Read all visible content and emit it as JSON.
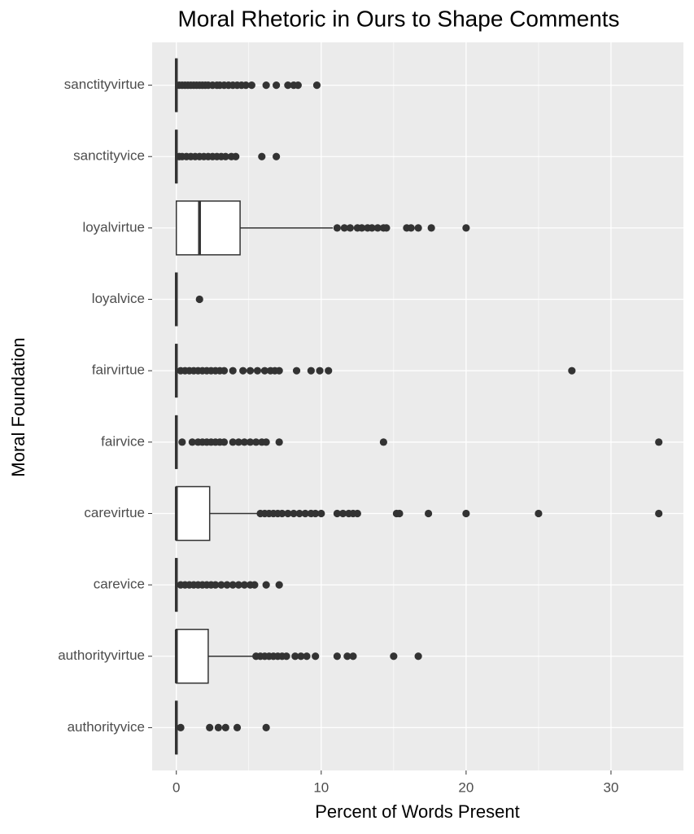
{
  "chart_data": {
    "type": "boxplot",
    "title": "Moral Rhetoric in Ours to Shape Comments",
    "xlabel": "Percent of Words Present",
    "ylabel": "Moral Foundation",
    "categories": [
      "sanctityvirtue",
      "sanctityvice",
      "loyalvirtue",
      "loyalvice",
      "fairvirtue",
      "fairvice",
      "carevirtue",
      "carevice",
      "authorityvirtue",
      "authorityvice"
    ],
    "boxes": [
      {
        "min": 0,
        "q1": 0,
        "median": 0,
        "q3": 0,
        "max": 0,
        "outliers": [
          0.2,
          0.4,
          0.6,
          0.8,
          1.0,
          1.2,
          1.4,
          1.6,
          1.8,
          2.0,
          2.2,
          2.5,
          2.8,
          3.0,
          3.3,
          3.6,
          3.9,
          4.2,
          4.5,
          4.8,
          5.2,
          6.2,
          6.9,
          7.7,
          8.1,
          8.4,
          9.7
        ]
      },
      {
        "min": 0,
        "q1": 0,
        "median": 0,
        "q3": 0,
        "max": 0,
        "outliers": [
          0.2,
          0.4,
          0.7,
          1.0,
          1.3,
          1.6,
          1.9,
          2.2,
          2.5,
          2.8,
          3.1,
          3.4,
          3.8,
          4.1,
          5.9,
          6.9
        ]
      },
      {
        "min": 0,
        "q1": 0,
        "median": 1.6,
        "q3": 4.4,
        "max": 10.8,
        "outliers": [
          11.1,
          11.6,
          12.0,
          12.5,
          12.8,
          13.2,
          13.5,
          13.9,
          14.3,
          14.5,
          15.9,
          16.2,
          16.7,
          17.6,
          20.0
        ]
      },
      {
        "min": 0,
        "q1": 0,
        "median": 0,
        "q3": 0,
        "max": 0,
        "outliers": [
          1.6
        ]
      },
      {
        "min": 0,
        "q1": 0,
        "median": 0,
        "q3": 0,
        "max": 0,
        "outliers": [
          0.3,
          0.6,
          0.9,
          1.2,
          1.5,
          1.8,
          2.1,
          2.4,
          2.7,
          3.0,
          3.3,
          3.9,
          4.6,
          5.1,
          5.6,
          6.1,
          6.5,
          6.8,
          7.1,
          8.3,
          9.3,
          9.9,
          10.5,
          27.3
        ]
      },
      {
        "min": 0,
        "q1": 0,
        "median": 0,
        "q3": 0,
        "max": 0,
        "outliers": [
          0.4,
          1.1,
          1.5,
          1.8,
          2.1,
          2.4,
          2.7,
          3.0,
          3.3,
          3.9,
          4.3,
          4.7,
          5.1,
          5.5,
          5.9,
          6.2,
          7.1,
          14.3,
          33.3
        ]
      },
      {
        "min": 0,
        "q1": 0,
        "median": 0,
        "q3": 2.3,
        "max": 5.6,
        "outliers": [
          5.8,
          6.1,
          6.4,
          6.7,
          7.0,
          7.3,
          7.7,
          8.1,
          8.5,
          8.9,
          9.3,
          9.6,
          10.0,
          11.1,
          11.5,
          11.9,
          12.2,
          12.5,
          15.2,
          15.4,
          17.4,
          20.0,
          25.0,
          33.3
        ]
      },
      {
        "min": 0,
        "q1": 0,
        "median": 0,
        "q3": 0,
        "max": 0,
        "outliers": [
          0.3,
          0.6,
          0.9,
          1.2,
          1.5,
          1.8,
          2.1,
          2.4,
          2.7,
          3.1,
          3.5,
          3.9,
          4.3,
          4.7,
          5.1,
          5.4,
          6.2,
          7.1
        ]
      },
      {
        "min": 0,
        "q1": 0,
        "median": 0,
        "q3": 2.2,
        "max": 5.3,
        "outliers": [
          5.5,
          5.8,
          6.1,
          6.4,
          6.7,
          7.0,
          7.3,
          7.6,
          8.2,
          8.6,
          9.0,
          9.6,
          11.1,
          11.8,
          12.2,
          15.0,
          16.7
        ]
      },
      {
        "min": 0,
        "q1": 0,
        "median": 0,
        "q3": 0,
        "max": 0,
        "outliers": [
          0.3,
          2.3,
          2.9,
          3.4,
          4.2,
          6.2
        ]
      }
    ],
    "xlim": [
      -1.67,
      35.0
    ],
    "xticks": [
      0,
      10,
      20,
      30
    ],
    "xminorticks": [
      5,
      15,
      25
    ],
    "grid": true,
    "panel_color": "#ebebeb",
    "box_color": "#ffffff",
    "point_color": "#333333"
  }
}
